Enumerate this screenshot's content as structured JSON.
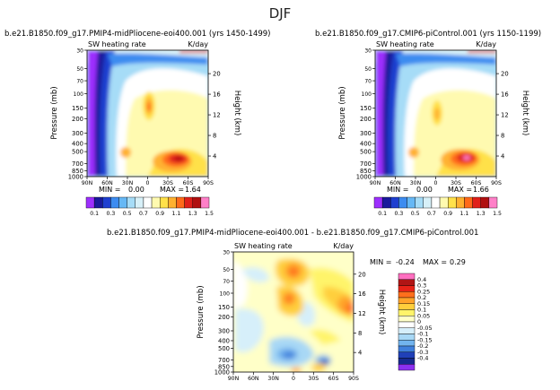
{
  "title": "DJF",
  "chart_data": [
    {
      "type": "heatmap",
      "title": "b.e21.B1850.f09_g17.PMIP4-midPliocene-eoi400.001  (yrs 1450-1499)",
      "left_string": "SW heating rate",
      "right_string": "K/day",
      "xlabel": "",
      "ylabel": "Pressure (mb)",
      "right_axis_label": "Height (km)",
      "x_ticks": [
        "90N",
        "60N",
        "30N",
        "0",
        "30S",
        "60S",
        "90S"
      ],
      "x_values": [
        -90,
        -60,
        -30,
        0,
        30,
        60,
        90
      ],
      "y_ticks": [
        "30",
        "50",
        "70",
        "100",
        "150",
        "200",
        "300",
        "400",
        "500",
        "700",
        "850",
        "1000"
      ],
      "height_ticks": [
        "20",
        "16",
        "12",
        "8",
        "4"
      ],
      "min_label": "MIN =",
      "min_value": "0.00",
      "max_label": "MAX =",
      "max_value": "1.64",
      "colorbar_labels": [
        "0.1",
        "0.3",
        "0.5",
        "0.7",
        "0.9",
        "1.1",
        "1.3",
        "1.5"
      ]
    },
    {
      "type": "heatmap",
      "title": "b.e21.B1850.f09_g17.CMIP6-piControl.001  (yrs 1150-1199)",
      "left_string": "SW heating rate",
      "right_string": "K/day",
      "xlabel": "",
      "ylabel": "Pressure (mb)",
      "right_axis_label": "Height (km)",
      "x_ticks": [
        "90N",
        "60N",
        "30N",
        "0",
        "30S",
        "60S",
        "90S"
      ],
      "x_values": [
        -90,
        -60,
        -30,
        0,
        30,
        60,
        90
      ],
      "y_ticks": [
        "30",
        "50",
        "70",
        "100",
        "150",
        "200",
        "300",
        "400",
        "500",
        "700",
        "850",
        "1000"
      ],
      "height_ticks": [
        "20",
        "16",
        "12",
        "8",
        "4"
      ],
      "min_label": "MIN =",
      "min_value": "0.00",
      "max_label": "MAX =",
      "max_value": "1.66",
      "colorbar_labels": [
        "0.1",
        "0.3",
        "0.5",
        "0.7",
        "0.9",
        "1.1",
        "1.3",
        "1.5"
      ]
    },
    {
      "type": "heatmap",
      "title": "b.e21.B1850.f09_g17.PMIP4-midPliocene-eoi400.001  -  b.e21.B1850.f09_g17.CMIP6-piControl.001",
      "left_string": "SW heating rate",
      "right_string": "K/day",
      "xlabel": "",
      "ylabel": "Pressure (mb)",
      "right_axis_label": "Height (km)",
      "x_ticks": [
        "90N",
        "60N",
        "30N",
        "0",
        "30S",
        "60S",
        "90S"
      ],
      "x_values": [
        -90,
        -60,
        -30,
        0,
        30,
        60,
        90
      ],
      "y_ticks": [
        "30",
        "50",
        "70",
        "100",
        "150",
        "200",
        "300",
        "400",
        "500",
        "700",
        "850",
        "1000"
      ],
      "height_ticks": [
        "20",
        "16",
        "12",
        "8",
        "4"
      ],
      "min_label": "MIN =",
      "min_value": "-0.24",
      "max_label": "MAX =",
      "max_value": "0.29",
      "colorbar_labels": [
        "0.4",
        "0.3",
        "0.25",
        "0.2",
        "0.15",
        "0.1",
        "0.05",
        "0",
        "-0.05",
        "-0.1",
        "-0.15",
        "-0.2",
        "-0.3",
        "-0.4"
      ]
    }
  ],
  "colors": {
    "abs_palette": [
      "#9d2ffe",
      "#1a1a9c",
      "#1f3fd0",
      "#3d8cf0",
      "#66b8f5",
      "#a6dcf7",
      "#d7f0f8",
      "#ffffff",
      "#fffab0",
      "#ffe14a",
      "#ffb130",
      "#ff6a1a",
      "#e0201a",
      "#b01010",
      "#ff80c8"
    ],
    "diff_palette": [
      "#ff6fc0",
      "#b01515",
      "#e82318",
      "#ff6f1c",
      "#ffa32a",
      "#ffcf3c",
      "#fff46a",
      "#ffffc8",
      "#ffffff",
      "#d6effa",
      "#a8d8f5",
      "#72b4ee",
      "#3f7fdc",
      "#2040b8",
      "#162a8e",
      "#8c30f0"
    ]
  }
}
